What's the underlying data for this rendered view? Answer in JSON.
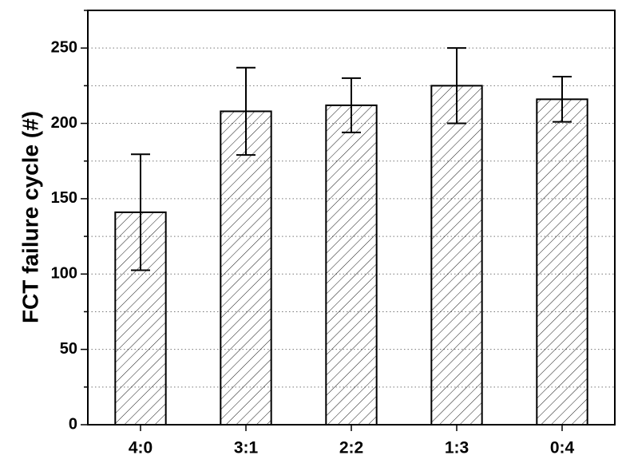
{
  "chart_data": {
    "type": "bar",
    "y_label": "FCT failure cycle (#)",
    "categories": [
      "4:0",
      "3:1",
      "2:2",
      "1:3",
      "0:4"
    ],
    "values": [
      141,
      208,
      212,
      225,
      216
    ],
    "errors": [
      38.5,
      29,
      18,
      25,
      15
    ],
    "color": "#000000",
    "ylim": [
      0,
      275
    ],
    "yticks": [
      0,
      50,
      100,
      150,
      200,
      250
    ],
    "minor_yticks": [
      25,
      75,
      125,
      175,
      225,
      275
    ],
    "grid": true
  }
}
